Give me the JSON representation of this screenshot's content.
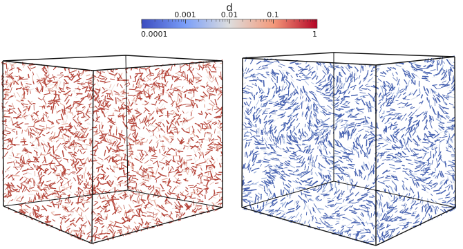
{
  "colorbar": {
    "title": "d",
    "top_tick_labels": [
      "0.001",
      "0.01",
      "0.1"
    ],
    "bottom_tick_labels": [
      "0.0001",
      "1"
    ],
    "range": [
      0.0001,
      1
    ],
    "scale": "log",
    "colormap": "cool-to-warm",
    "color_low": "#3b4cc0",
    "color_mid": "#dddddd",
    "color_high": "#b40426"
  },
  "panels": [
    {
      "name": "left-cube",
      "glyph_color_dominant": "#b5453a",
      "glyph_color_light": "#e8b4a6",
      "glyph_color_white": "#f1e6e2",
      "box_edges_color": "#111111"
    },
    {
      "name": "right-cube",
      "glyph_color_dominant": "#4661b0",
      "glyph_color_light": "#9fb4dd",
      "glyph_color_white": "#e4e8f1",
      "box_edges_color": "#111111"
    }
  ]
}
